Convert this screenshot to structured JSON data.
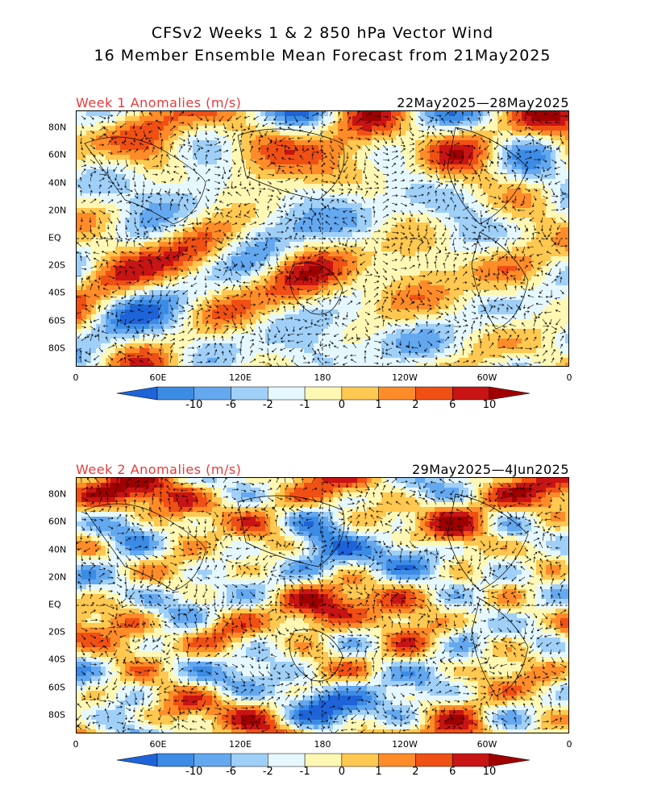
{
  "title_line1": "CFSv2 Weeks 1 & 2 850 hPa Vector Wind",
  "title_line2": "16 Member Ensemble Mean Forecast from 21May2025",
  "latitude_ticks": [
    "80N",
    "60N",
    "40N",
    "20N",
    "EQ",
    "20S",
    "40S",
    "60S",
    "80S"
  ],
  "longitude_ticks": [
    "0",
    "60E",
    "120E",
    "180",
    "120W",
    "60W",
    "0"
  ],
  "colorbar": {
    "levels": [
      "-10",
      "-6",
      "-2",
      "-1",
      "0",
      "1",
      "2",
      "6",
      "10"
    ],
    "colors": [
      "#1e64d8",
      "#3c8ce6",
      "#64a8f0",
      "#a0d0f8",
      "#e6f8ff",
      "#fff8b4",
      "#ffc850",
      "#ff8c28",
      "#f05014",
      "#c81414",
      "#a00000"
    ]
  },
  "panels": [
    {
      "label": "Week 1 Anomalies (m/s)",
      "date_range": "22May2025—28May2025",
      "seed": 11
    },
    {
      "label": "Week 2 Anomalies (m/s)",
      "date_range": "29May2025—4Jun2025",
      "seed": 29
    }
  ]
}
